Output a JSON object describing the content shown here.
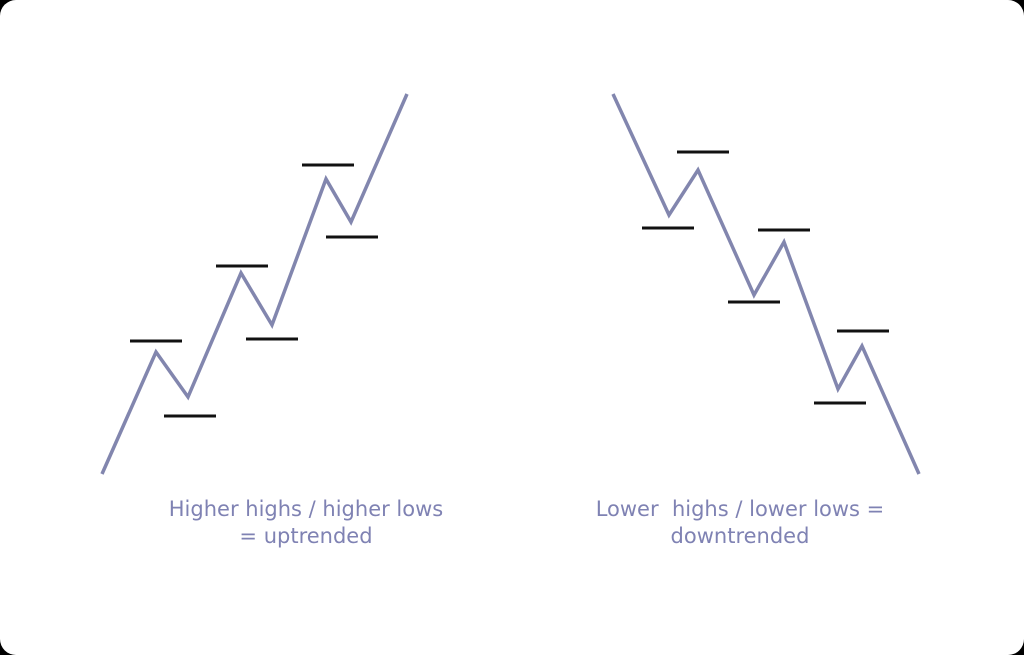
{
  "diagrams": [
    {
      "caption_lines": [
        "Higher highs / higher lows",
        "= uptrended"
      ]
    },
    {
      "caption_lines": [
        "Lower  highs / lower lows =",
        "downtrended"
      ]
    }
  ],
  "colors": {
    "price_line": "#8286ae",
    "level_marker": "#111111",
    "caption": "#7f82b3",
    "background": "#ffffff",
    "outer": "#000000"
  }
}
